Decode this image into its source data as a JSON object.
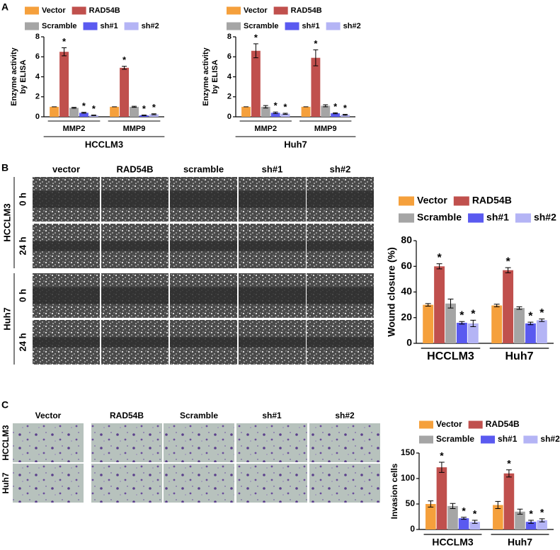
{
  "panels": {
    "a": "A",
    "b": "B",
    "c": "C"
  },
  "chart_data": [
    {
      "type": "bar",
      "ylabel": [
        "Enzyme activity",
        "by ELISA"
      ],
      "categories": [
        "MMP2",
        "MMP9"
      ],
      "group_label": "HCCLM3",
      "ylim": [
        0,
        8
      ],
      "yticks": [
        0,
        2,
        4,
        6,
        8
      ],
      "series": [
        {
          "name": "Vector",
          "color": "#f5a03c",
          "values": [
            1,
            1
          ],
          "errors": [
            0,
            0
          ],
          "annotations": [
            null,
            null
          ]
        },
        {
          "name": "RAD54B",
          "color": "#c0504d",
          "values": [
            6.5,
            4.9
          ],
          "errors": [
            0.4,
            0.15
          ],
          "annotations": [
            "*",
            "*"
          ]
        },
        {
          "name": "Scramble",
          "color": "#a5a5a5",
          "values": [
            0.9,
            1.0
          ],
          "errors": [
            0.05,
            0.05
          ],
          "annotations": [
            null,
            null
          ]
        },
        {
          "name": "sh#1",
          "color": "#5a5af0",
          "values": [
            0.4,
            0.15
          ],
          "errors": [
            0.05,
            0.03
          ],
          "annotations": [
            "*",
            "*"
          ]
        },
        {
          "name": "sh#2",
          "color": "#b4b4f5",
          "values": [
            0.15,
            0.25
          ],
          "errors": [
            0.03,
            0.05
          ],
          "annotations": [
            "*",
            "*"
          ]
        }
      ]
    },
    {
      "type": "bar",
      "ylabel": [
        "Enzyme activity",
        "by ELISA"
      ],
      "categories": [
        "MMP2",
        "MMP9"
      ],
      "group_label": "Huh7",
      "ylim": [
        0,
        8
      ],
      "yticks": [
        0,
        2,
        4,
        6,
        8
      ],
      "series": [
        {
          "name": "Vector",
          "color": "#f5a03c",
          "values": [
            1,
            1
          ],
          "errors": [
            0,
            0
          ],
          "annotations": [
            null,
            null
          ]
        },
        {
          "name": "RAD54B",
          "color": "#c0504d",
          "values": [
            6.6,
            5.9
          ],
          "errors": [
            0.7,
            0.8
          ],
          "annotations": [
            "*",
            "*"
          ]
        },
        {
          "name": "Scramble",
          "color": "#a5a5a5",
          "values": [
            1.0,
            1.1
          ],
          "errors": [
            0.12,
            0.1
          ],
          "annotations": [
            null,
            null
          ]
        },
        {
          "name": "sh#1",
          "color": "#5a5af0",
          "values": [
            0.4,
            0.35
          ],
          "errors": [
            0.08,
            0.05
          ],
          "annotations": [
            "*",
            "*"
          ]
        },
        {
          "name": "sh#2",
          "color": "#b4b4f5",
          "values": [
            0.3,
            0.2
          ],
          "errors": [
            0.05,
            0.05
          ],
          "annotations": [
            "*",
            "*"
          ]
        }
      ]
    },
    {
      "type": "bar",
      "ylabel": "Wound closure (%)",
      "categories": [
        "HCCLM3",
        "Huh7"
      ],
      "ylim": [
        0,
        80
      ],
      "yticks": [
        0,
        20,
        40,
        60,
        80
      ],
      "series": [
        {
          "name": "Vector",
          "color": "#f5a03c",
          "values": [
            30,
            29.5
          ],
          "errors": [
            1,
            1
          ],
          "annotations": [
            null,
            null
          ]
        },
        {
          "name": "RAD54B",
          "color": "#c0504d",
          "values": [
            60,
            57
          ],
          "errors": [
            2,
            2
          ],
          "annotations": [
            "*",
            "*"
          ]
        },
        {
          "name": "Scramble",
          "color": "#a5a5a5",
          "values": [
            31,
            27.5
          ],
          "errors": [
            3.5,
            1
          ],
          "annotations": [
            null,
            null
          ]
        },
        {
          "name": "sh#1",
          "color": "#5a5af0",
          "values": [
            16,
            15.5
          ],
          "errors": [
            1,
            1
          ],
          "annotations": [
            "*",
            "*"
          ]
        },
        {
          "name": "sh#2",
          "color": "#b4b4f5",
          "values": [
            15.5,
            18
          ],
          "errors": [
            2.5,
            1
          ],
          "annotations": [
            "*",
            "*"
          ]
        }
      ]
    },
    {
      "type": "bar",
      "ylabel": "Invasion cells",
      "categories": [
        "HCCLM3",
        "Huh7"
      ],
      "ylim": [
        0,
        150
      ],
      "yticks": [
        0,
        50,
        100,
        150
      ],
      "series": [
        {
          "name": "Vector",
          "color": "#f5a03c",
          "values": [
            50,
            48
          ],
          "errors": [
            6,
            7
          ],
          "annotations": [
            null,
            null
          ]
        },
        {
          "name": "RAD54B",
          "color": "#c0504d",
          "values": [
            122,
            110
          ],
          "errors": [
            10,
            7
          ],
          "annotations": [
            "*",
            "*"
          ]
        },
        {
          "name": "Scramble",
          "color": "#a5a5a5",
          "values": [
            46,
            35
          ],
          "errors": [
            5,
            5
          ],
          "annotations": [
            null,
            null
          ]
        },
        {
          "name": "sh#1",
          "color": "#5a5af0",
          "values": [
            22,
            15
          ],
          "errors": [
            2,
            3
          ],
          "annotations": [
            "*",
            "*"
          ]
        },
        {
          "name": "sh#2",
          "color": "#b4b4f5",
          "values": [
            15,
            18
          ],
          "errors": [
            3,
            3
          ],
          "annotations": [
            "*",
            "*"
          ]
        }
      ]
    }
  ],
  "wound_images": {
    "columns": [
      "vector",
      "RAD54B",
      "scramble",
      "sh#1",
      "sh#2"
    ],
    "cell_lines": [
      "HCCLM3",
      "Huh7"
    ],
    "times": [
      "0 h",
      "24 h"
    ]
  },
  "invasion_images": {
    "columns": [
      "Vector",
      "RAD54B",
      "Scramble",
      "sh#1",
      "sh#2"
    ],
    "rows": [
      "HCCLM3",
      "Huh7"
    ]
  }
}
